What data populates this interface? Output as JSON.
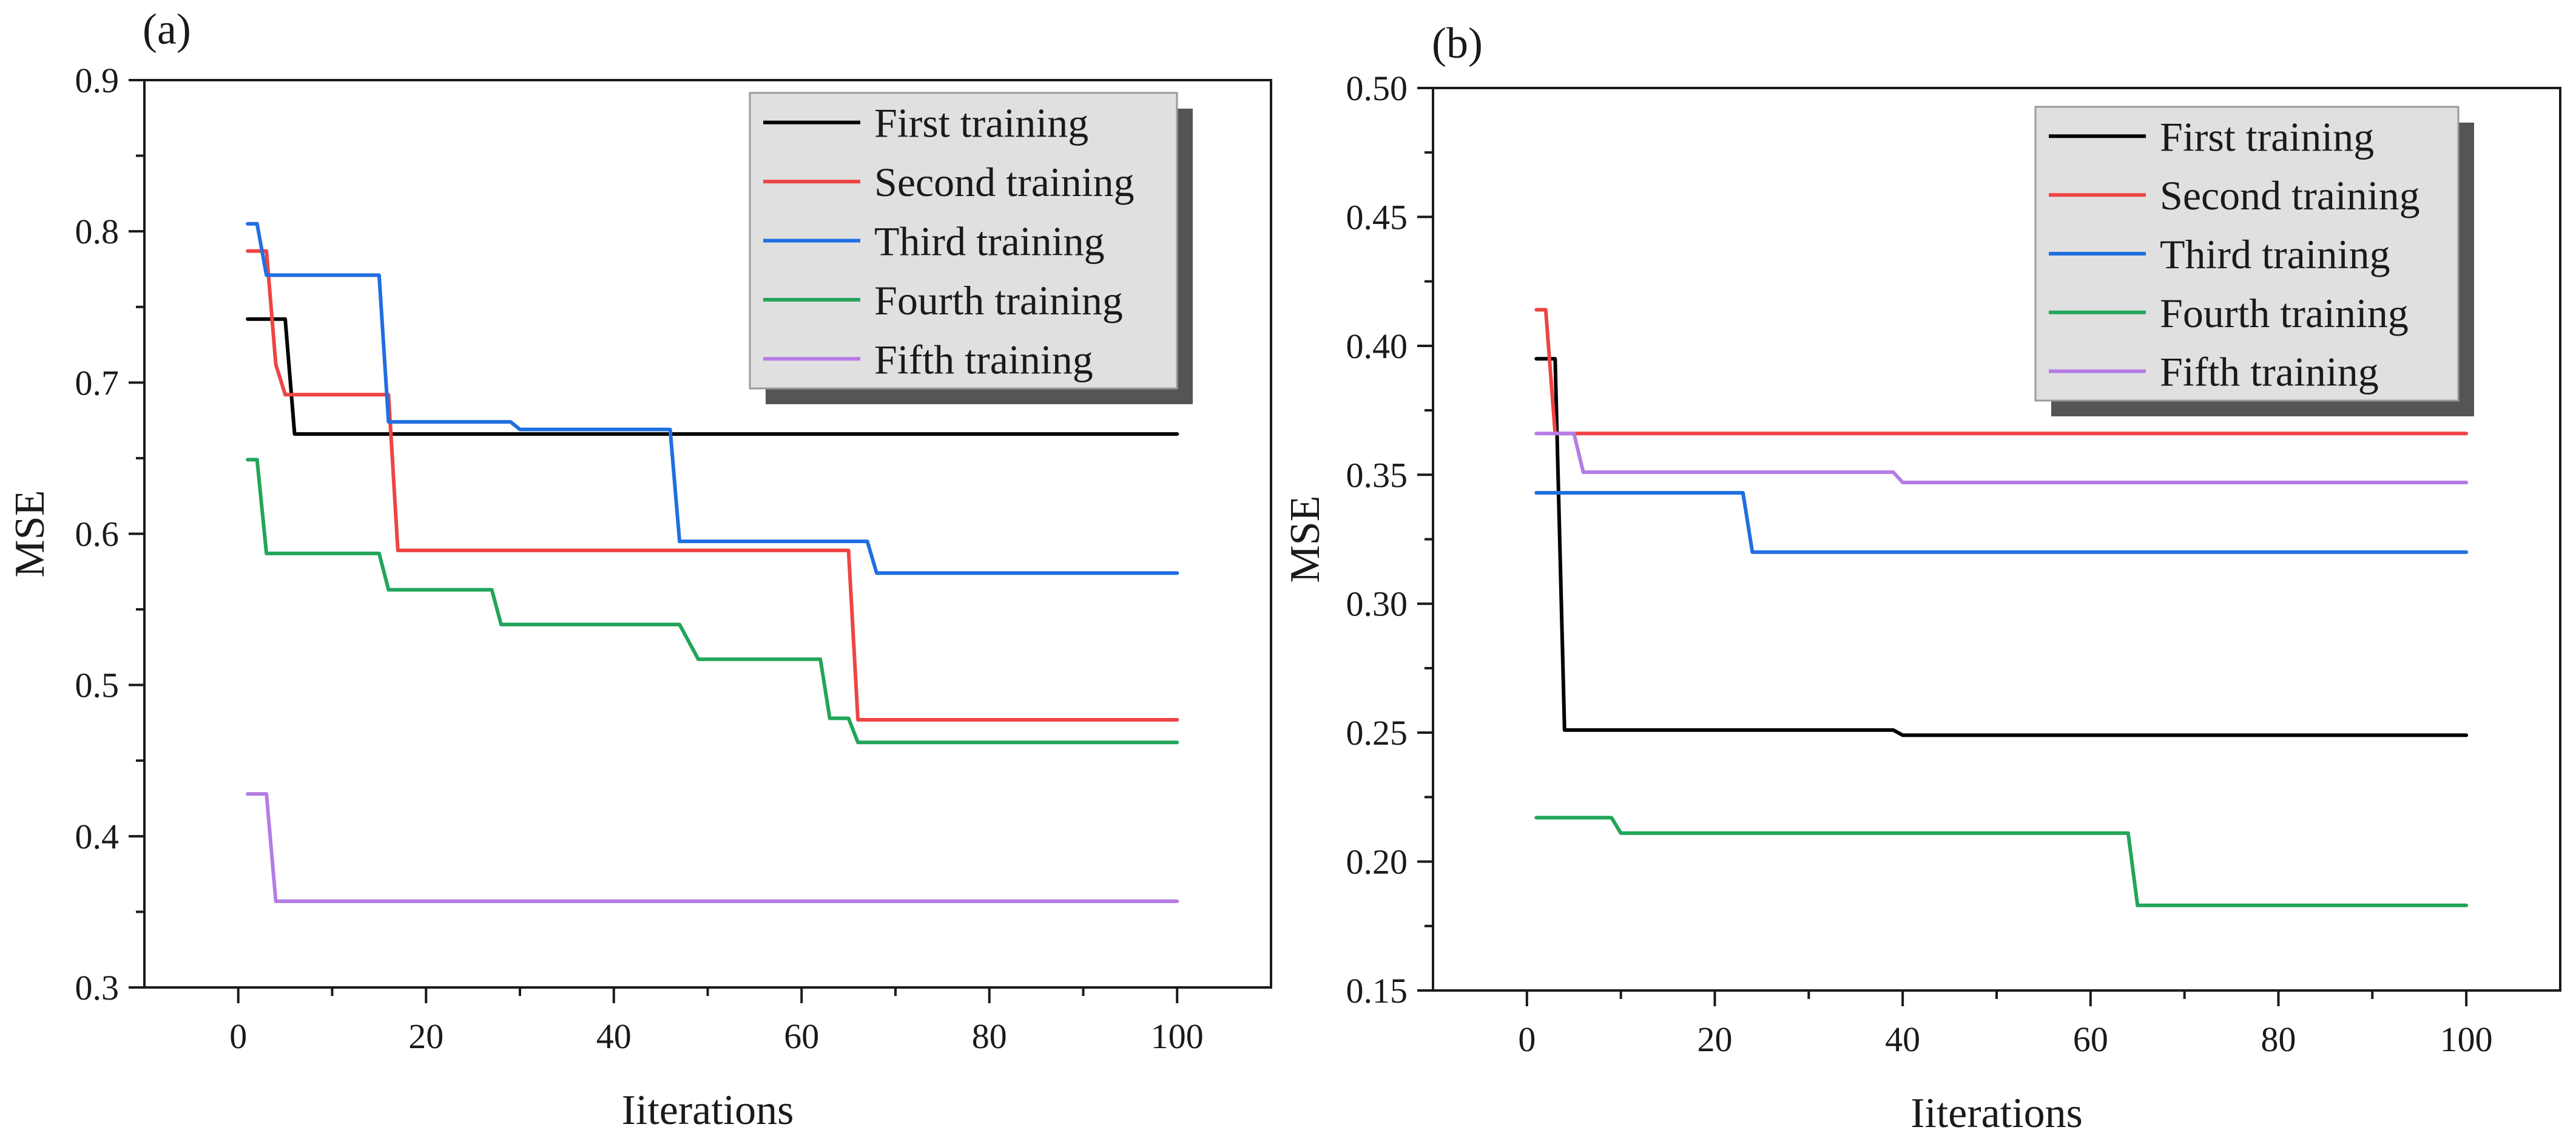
{
  "chart_data": [
    {
      "panel": "(a)",
      "type": "line",
      "step": true,
      "xlabel": "Iiterations",
      "ylabel": "MSE",
      "xlim": [
        -10,
        110
      ],
      "ylim": [
        0.3,
        0.9
      ],
      "xticks": [
        0,
        20,
        40,
        60,
        80,
        100
      ],
      "yticks": [
        0.3,
        0.4,
        0.5,
        0.6,
        0.7,
        0.8,
        0.9
      ],
      "ytick_labels": [
        "0.3",
        "0.4",
        "0.5",
        "0.6",
        "0.7",
        "0.8",
        "0.9"
      ],
      "grid": false,
      "legend": {
        "position": "top-right",
        "box_fill": "#e0e0e0",
        "shadow": true
      },
      "series": [
        {
          "name": "First training",
          "color": "#000000",
          "points": [
            [
              1,
              0.742
            ],
            [
              5,
              0.742
            ],
            [
              6,
              0.666
            ],
            [
              100,
              0.666
            ]
          ]
        },
        {
          "name": "Second training",
          "color": "#ef4444",
          "points": [
            [
              1,
              0.787
            ],
            [
              3,
              0.787
            ],
            [
              4,
              0.712
            ],
            [
              5,
              0.692
            ],
            [
              16,
              0.692
            ],
            [
              17,
              0.589
            ],
            [
              65,
              0.589
            ],
            [
              66,
              0.477
            ],
            [
              100,
              0.477
            ]
          ]
        },
        {
          "name": "Third training",
          "color": "#1f6fe0",
          "points": [
            [
              1,
              0.805
            ],
            [
              2,
              0.805
            ],
            [
              3,
              0.771
            ],
            [
              15,
              0.771
            ],
            [
              16,
              0.674
            ],
            [
              29,
              0.674
            ],
            [
              30,
              0.669
            ],
            [
              46,
              0.669
            ],
            [
              47,
              0.595
            ],
            [
              67,
              0.595
            ],
            [
              68,
              0.574
            ],
            [
              100,
              0.574
            ]
          ]
        },
        {
          "name": "Fourth training",
          "color": "#22a55a",
          "points": [
            [
              1,
              0.649
            ],
            [
              2,
              0.649
            ],
            [
              3,
              0.587
            ],
            [
              15,
              0.587
            ],
            [
              16,
              0.563
            ],
            [
              27,
              0.563
            ],
            [
              28,
              0.54
            ],
            [
              47,
              0.54
            ],
            [
              49,
              0.517
            ],
            [
              62,
              0.517
            ],
            [
              63,
              0.478
            ],
            [
              65,
              0.478
            ],
            [
              66,
              0.462
            ],
            [
              100,
              0.462
            ]
          ]
        },
        {
          "name": "Fifth training",
          "color": "#b57ce4",
          "points": [
            [
              1,
              0.428
            ],
            [
              3,
              0.428
            ],
            [
              4,
              0.357
            ],
            [
              100,
              0.357
            ]
          ]
        }
      ]
    },
    {
      "panel": "(b)",
      "type": "line",
      "step": true,
      "xlabel": "Iiterations",
      "ylabel": "MSE",
      "xlim": [
        -10,
        110
      ],
      "ylim": [
        0.15,
        0.5
      ],
      "xticks": [
        0,
        20,
        40,
        60,
        80,
        100
      ],
      "yticks": [
        0.15,
        0.2,
        0.25,
        0.3,
        0.35,
        0.4,
        0.45,
        0.5
      ],
      "ytick_labels": [
        "0.15",
        "0.20",
        "0.25",
        "0.30",
        "0.35",
        "0.40",
        "0.45",
        "0.50"
      ],
      "grid": false,
      "legend": {
        "position": "top-right",
        "box_fill": "#e0e0e0",
        "shadow": true
      },
      "series": [
        {
          "name": "First training",
          "color": "#000000",
          "points": [
            [
              1,
              0.395
            ],
            [
              3,
              0.395
            ],
            [
              4,
              0.251
            ],
            [
              39,
              0.251
            ],
            [
              40,
              0.249
            ],
            [
              100,
              0.249
            ]
          ]
        },
        {
          "name": "Second training",
          "color": "#ef4444",
          "points": [
            [
              1,
              0.414
            ],
            [
              2,
              0.414
            ],
            [
              3,
              0.366
            ],
            [
              100,
              0.366
            ]
          ]
        },
        {
          "name": "Third training",
          "color": "#1f6fe0",
          "points": [
            [
              1,
              0.343
            ],
            [
              23,
              0.343
            ],
            [
              24,
              0.32
            ],
            [
              100,
              0.32
            ]
          ]
        },
        {
          "name": "Fourth training",
          "color": "#22a55a",
          "points": [
            [
              1,
              0.217
            ],
            [
              9,
              0.217
            ],
            [
              10,
              0.211
            ],
            [
              64,
              0.211
            ],
            [
              65,
              0.183
            ],
            [
              100,
              0.183
            ]
          ]
        },
        {
          "name": "Fifth training",
          "color": "#b57ce4",
          "points": [
            [
              1,
              0.366
            ],
            [
              5,
              0.366
            ],
            [
              6,
              0.351
            ],
            [
              39,
              0.351
            ],
            [
              40,
              0.347
            ],
            [
              100,
              0.347
            ]
          ]
        }
      ]
    }
  ]
}
